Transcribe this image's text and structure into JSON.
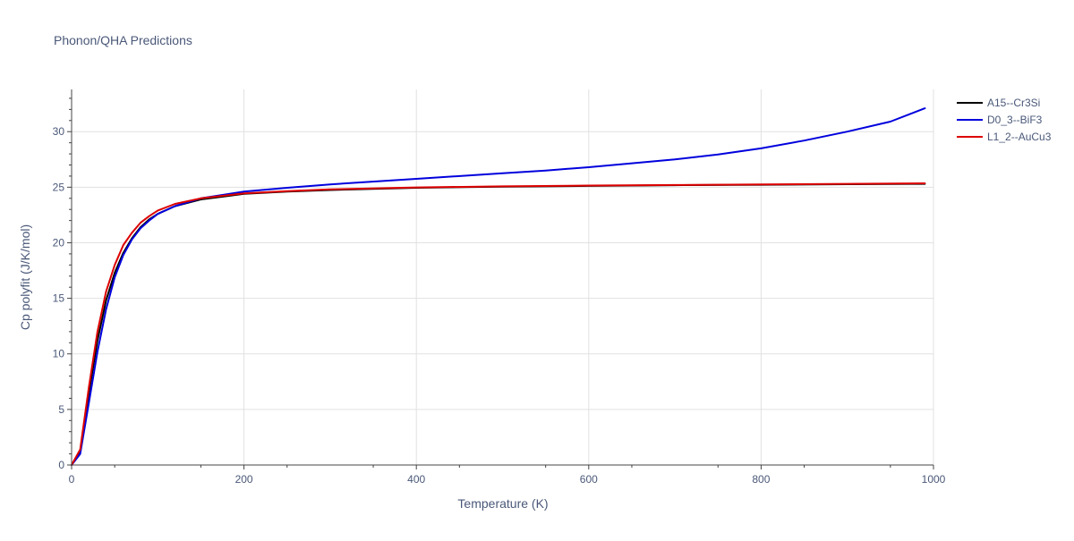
{
  "chart_data": {
    "type": "line",
    "title": "Phonon/QHA Predictions",
    "xlabel": "Temperature (K)",
    "ylabel": "Cp polyfit (J/K/mol)",
    "xlim": [
      0,
      1000
    ],
    "ylim": [
      0,
      33.8
    ],
    "xticks": [
      0,
      200,
      400,
      600,
      800,
      1000
    ],
    "xtick_labels": [
      "0",
      "200",
      "400",
      "600",
      "800",
      "1000"
    ],
    "yticks": [
      0,
      5,
      10,
      15,
      20,
      25,
      30
    ],
    "ytick_labels": [
      "0",
      "5",
      "10",
      "15",
      "20",
      "25",
      "30"
    ],
    "grid": true,
    "legend_position": "top-right",
    "series": [
      {
        "name": "A15--Cr3Si",
        "color": "#000000",
        "x": [
          0,
          10,
          20,
          30,
          40,
          50,
          60,
          70,
          80,
          90,
          100,
          120,
          150,
          200,
          250,
          300,
          400,
          500,
          600,
          700,
          800,
          900,
          990
        ],
        "y": [
          0,
          1.2,
          6.5,
          11.2,
          14.8,
          17.3,
          19.1,
          20.4,
          21.4,
          22.1,
          22.6,
          23.3,
          23.9,
          24.4,
          24.6,
          24.75,
          24.95,
          25.05,
          25.12,
          25.18,
          25.22,
          25.27,
          25.3
        ]
      },
      {
        "name": "D0_3--BiF3",
        "color": "#0000dd",
        "x": [
          0,
          10,
          20,
          30,
          40,
          50,
          60,
          70,
          80,
          90,
          100,
          120,
          150,
          200,
          250,
          300,
          400,
          500,
          550,
          600,
          650,
          700,
          750,
          800,
          850,
          900,
          950,
          990
        ],
        "y": [
          0,
          1.0,
          5.6,
          10.2,
          14.0,
          16.9,
          18.9,
          20.3,
          21.3,
          22.0,
          22.6,
          23.3,
          24.0,
          24.6,
          24.95,
          25.25,
          25.75,
          26.25,
          26.5,
          26.8,
          27.15,
          27.5,
          27.95,
          28.5,
          29.2,
          30.0,
          30.9,
          32.1
        ]
      },
      {
        "name": "L1_2--AuCu3",
        "color": "#dd0000",
        "x": [
          0,
          10,
          20,
          30,
          40,
          50,
          60,
          70,
          80,
          90,
          100,
          120,
          150,
          200,
          250,
          300,
          400,
          500,
          600,
          700,
          800,
          900,
          990
        ],
        "y": [
          0,
          1.4,
          7.0,
          12.0,
          15.6,
          18.0,
          19.8,
          20.9,
          21.8,
          22.4,
          22.9,
          23.5,
          24.0,
          24.45,
          24.65,
          24.8,
          24.98,
          25.08,
          25.15,
          25.2,
          25.25,
          25.3,
          25.35
        ]
      }
    ]
  }
}
